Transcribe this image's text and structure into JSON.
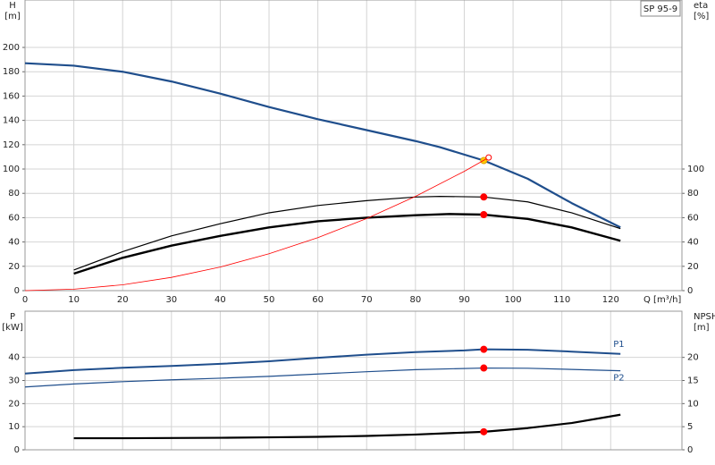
{
  "chart_data": [
    {
      "type": "line",
      "y_label": "H",
      "y_unit": "[m]",
      "y2_label": "eta",
      "y2_unit": "[%]",
      "x_label": "Q [m³/h]",
      "annotation": "SP 95-9",
      "xlim": [
        0,
        134.6
      ],
      "xticks": [
        0,
        10,
        20,
        30,
        40,
        50,
        60,
        70,
        80,
        90,
        100,
        110,
        120
      ],
      "xtick_labels": true,
      "ylim": [
        0,
        239
      ],
      "yticks": [
        0,
        20,
        40,
        60,
        80,
        100,
        120,
        140,
        160,
        180,
        200
      ],
      "y2lim": [
        0,
        239
      ],
      "y2ticks": [
        0,
        20,
        40,
        60,
        80,
        100
      ],
      "grid": true,
      "series": [
        {
          "color": "#1f4e8c",
          "width": 2.2,
          "x": [
            0,
            10,
            20,
            30,
            40,
            50,
            60,
            70,
            80,
            85,
            94,
            103,
            112,
            122
          ],
          "values": [
            187,
            185,
            180,
            172,
            162,
            151,
            141,
            132,
            123,
            118,
            107,
            92,
            72,
            52
          ],
          "markers": [
            {
              "x": 94,
              "y": 107,
              "color": "#ffcc00",
              "open": false
            }
          ]
        },
        {
          "color": "#000000",
          "width": 1.2,
          "axis": "y2",
          "x": [
            10,
            20,
            30,
            40,
            50,
            60,
            70,
            80,
            85,
            94,
            103,
            112,
            122
          ],
          "values": [
            17,
            32,
            45,
            55,
            64,
            70,
            74,
            77,
            77.5,
            77,
            73,
            64,
            51
          ],
          "markers": [
            {
              "x": 94,
              "y": 77,
              "color": "#ff0000",
              "open": false
            }
          ]
        },
        {
          "color": "#000000",
          "width": 2.4,
          "axis": "y2",
          "x": [
            10,
            20,
            30,
            40,
            50,
            60,
            70,
            80,
            87,
            94,
            103,
            112,
            122
          ],
          "values": [
            14,
            27,
            37,
            45,
            52,
            57,
            60,
            62,
            63,
            62.5,
            59,
            52,
            41
          ],
          "markers": [
            {
              "x": 94,
              "y": 62.5,
              "color": "#ff0000",
              "open": false
            }
          ]
        },
        {
          "color": "#ff0000",
          "width": 0.8,
          "x": [
            0,
            10,
            20,
            30,
            40,
            50,
            60,
            70,
            80,
            90,
            95
          ],
          "values": [
            0,
            1.2,
            4.8,
            10.9,
            19.4,
            30.3,
            43.6,
            59.3,
            77.5,
            98.1,
            109.5
          ],
          "markers": [
            {
              "x": 95,
              "y": 109.5,
              "color": "#ff0000",
              "open": true
            }
          ]
        }
      ]
    },
    {
      "type": "line",
      "y_label": "P",
      "y_unit": "[kW]",
      "y2_label": "NPSH",
      "y2_unit": "[m]",
      "xlim": [
        0,
        134.6
      ],
      "xticks": [
        0,
        10,
        20,
        30,
        40,
        50,
        60,
        70,
        80,
        90,
        100,
        110,
        120
      ],
      "xtick_labels": false,
      "ylim": [
        0,
        60
      ],
      "yticks": [
        0,
        10,
        20,
        30,
        40
      ],
      "y2lim": [
        0,
        30
      ],
      "y2ticks": [
        0,
        5,
        10,
        15,
        20
      ],
      "grid": true,
      "series": [
        {
          "name": "P1",
          "color": "#1f4e8c",
          "width": 2,
          "x": [
            0,
            10,
            20,
            30,
            40,
            50,
            60,
            70,
            80,
            90,
            94,
            103,
            112,
            122
          ],
          "values": [
            33,
            34.5,
            35.5,
            36.3,
            37.2,
            38.3,
            39.8,
            41.2,
            42.3,
            43,
            43.5,
            43.3,
            42.5,
            41.5
          ],
          "markers": [
            {
              "x": 94,
              "y": 43.5,
              "color": "#ff0000",
              "open": false
            }
          ]
        },
        {
          "name": "P2",
          "color": "#1f4e8c",
          "width": 1.2,
          "x": [
            0,
            10,
            20,
            30,
            40,
            50,
            60,
            70,
            80,
            94,
            103,
            112,
            122
          ],
          "values": [
            27.2,
            28.5,
            29.5,
            30.3,
            31,
            31.8,
            32.8,
            33.8,
            34.7,
            35.4,
            35.3,
            34.8,
            34.2
          ],
          "markers": [
            {
              "x": 94,
              "y": 35.4,
              "color": "#ff0000",
              "open": false
            }
          ]
        },
        {
          "color": "#000000",
          "width": 2.2,
          "axis": "y2",
          "x": [
            10,
            20,
            30,
            40,
            50,
            60,
            70,
            80,
            94,
            103,
            112,
            122
          ],
          "values": [
            2.5,
            2.5,
            2.55,
            2.6,
            2.7,
            2.8,
            3.0,
            3.3,
            3.9,
            4.7,
            5.8,
            7.6
          ],
          "markers": [
            {
              "x": 94,
              "y": 3.9,
              "color": "#ff0000",
              "open": false
            }
          ]
        }
      ]
    }
  ]
}
